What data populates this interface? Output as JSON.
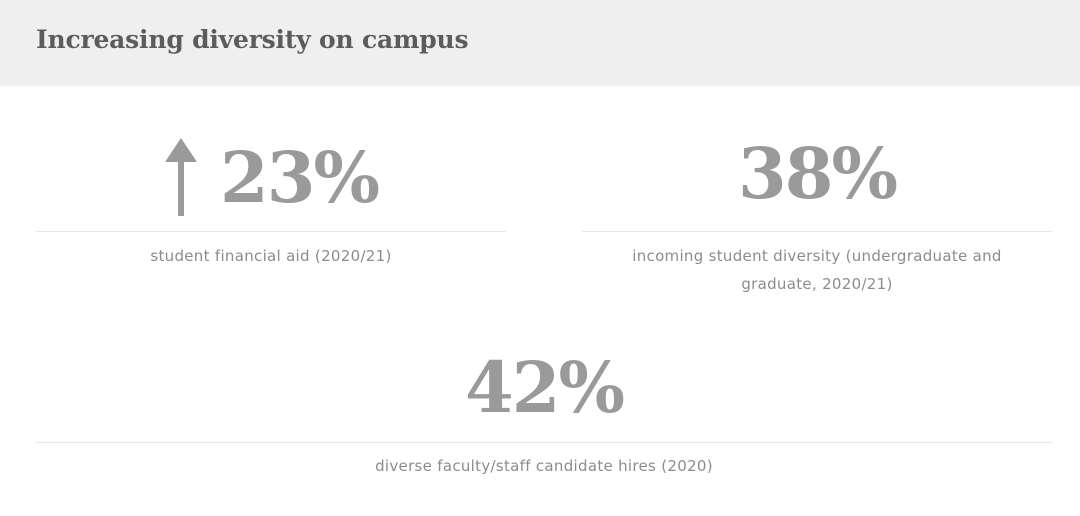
{
  "header": {
    "title": "Increasing diversity on campus"
  },
  "stats": [
    {
      "value": "23%",
      "caption": "student financial aid (2020/21)",
      "icon": "arrow-up-icon"
    },
    {
      "value": "38%",
      "caption": "incoming student diversity (undergraduate and graduate, 2020/21)"
    },
    {
      "value": "42%",
      "caption": "diverse faculty/staff candidate hires (2020)"
    }
  ],
  "colors": {
    "header_background": "#efefef",
    "title_text": "#5c5c5c",
    "stat_value": "#9a9a9a",
    "caption_text": "#8c8c8c",
    "rule": "#e6e6e6"
  }
}
